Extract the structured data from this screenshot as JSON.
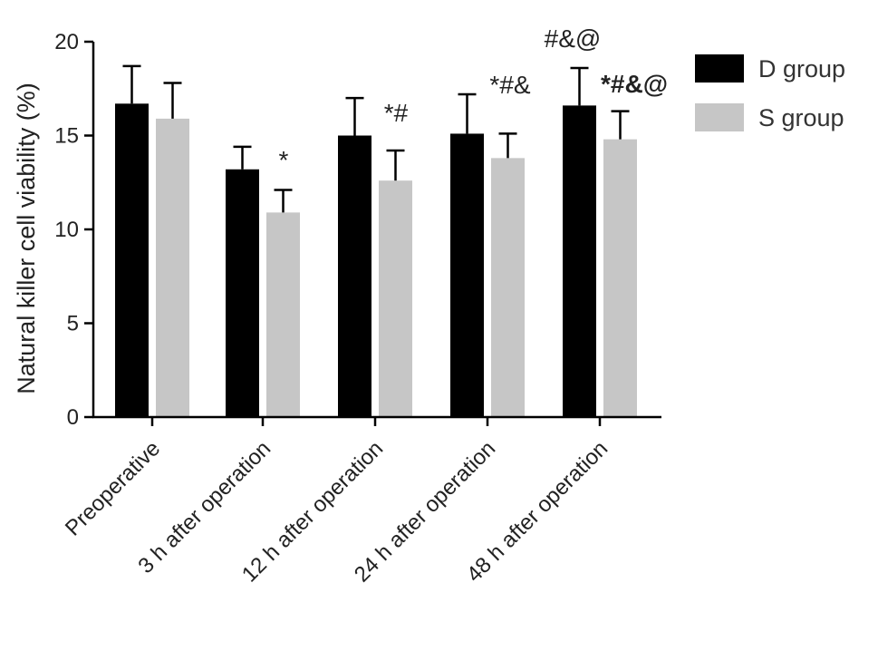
{
  "chart_data": {
    "type": "bar",
    "title": "",
    "xlabel": "",
    "ylabel": "Natural killer cell viability (%)",
    "ylim": [
      0,
      20
    ],
    "yticks": [
      0,
      5,
      10,
      15,
      20
    ],
    "grid": false,
    "legend_position": "top-right",
    "categories": [
      "Preoperative",
      "3 h after operation",
      "12 h after operation",
      "24 h after operation",
      "48 h after operation"
    ],
    "series": [
      {
        "name": "D group",
        "color": "#000000",
        "values": [
          16.7,
          13.2,
          15.0,
          15.1,
          16.6
        ],
        "errors": [
          2.0,
          1.2,
          2.0,
          2.1,
          2.0
        ],
        "annotations": [
          "",
          "",
          "",
          "",
          "#&@"
        ]
      },
      {
        "name": "S group",
        "color": "#c6c6c6",
        "values": [
          15.9,
          10.9,
          12.6,
          13.8,
          14.8
        ],
        "errors": [
          1.9,
          1.2,
          1.6,
          1.3,
          1.5
        ],
        "annotations": [
          "",
          "*",
          "*#",
          "*#&",
          "*#&@"
        ]
      }
    ]
  }
}
